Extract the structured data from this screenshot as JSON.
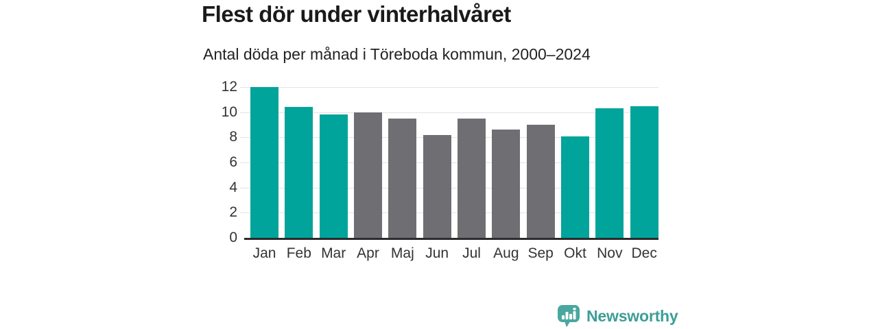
{
  "header": {
    "title": "Flest dör under vinterhalvåret",
    "subtitle": "Antal döda per månad i Töreboda kommun, 2000–2024"
  },
  "chart_data": {
    "type": "bar",
    "title": "Flest dör under vinterhalvåret",
    "subtitle": "Antal döda per månad i Töreboda kommun, 2000–2024",
    "categories": [
      "Jan",
      "Feb",
      "Mar",
      "Apr",
      "Maj",
      "Jun",
      "Jul",
      "Aug",
      "Sep",
      "Okt",
      "Nov",
      "Dec"
    ],
    "values": [
      12.0,
      10.4,
      9.8,
      10.0,
      9.5,
      8.2,
      9.5,
      8.6,
      9.0,
      8.1,
      10.3,
      10.5
    ],
    "bar_groups": [
      "winter",
      "winter",
      "winter",
      "summer",
      "summer",
      "summer",
      "summer",
      "summer",
      "summer",
      "winter",
      "winter",
      "winter"
    ],
    "group_colors": {
      "winter": "#00a49b",
      "summer": "#6f6e73"
    },
    "xlabel": "",
    "ylabel": "",
    "ylim": [
      0,
      12
    ],
    "yticks": [
      0,
      2,
      4,
      6,
      8,
      10,
      12
    ],
    "grid": true,
    "legend": "none"
  },
  "footer": {
    "brand": "Newsworthy",
    "logo_icon": "bar-chart-speech-bubble-icon",
    "brand_color": "#3d9e96",
    "logo_fill": "#4aa79e"
  }
}
